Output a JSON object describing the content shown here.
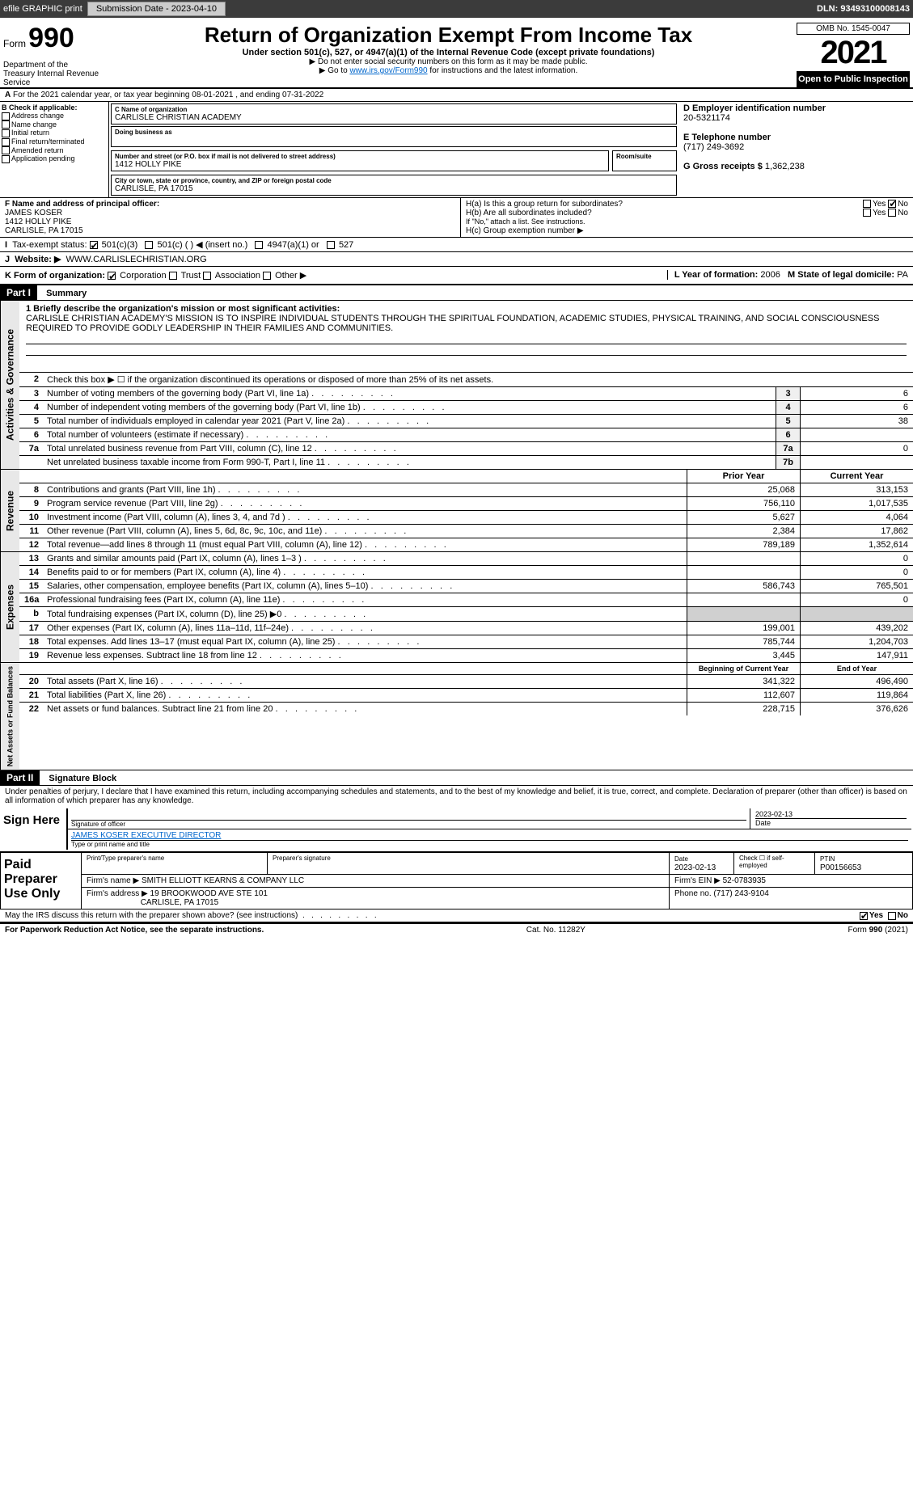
{
  "header_bar": {
    "efile": "efile GRAPHIC print",
    "submission_label": "Submission Date - 2023-04-10",
    "dln_label": "DLN: 93493100008143"
  },
  "title": {
    "form_word": "Form",
    "form_num": "990",
    "dept": "Department of the Treasury Internal Revenue Service",
    "main": "Return of Organization Exempt From Income Tax",
    "sub": "Under section 501(c), 527, or 4947(a)(1) of the Internal Revenue Code (except private foundations)",
    "note1": "▶ Do not enter social security numbers on this form as it may be made public.",
    "note2_pre": "▶ Go to ",
    "note2_link": "www.irs.gov/Form990",
    "note2_post": " for instructions and the latest information.",
    "omb": "OMB No. 1545-0047",
    "year": "2021",
    "inspect": "Open to Public Inspection"
  },
  "section_a": {
    "line": "For the 2021 calendar year, or tax year beginning 08-01-2021    , and ending 07-31-2022",
    "b_label": "B Check if applicable:",
    "b_opts": [
      "Address change",
      "Name change",
      "Initial return",
      "Final return/terminated",
      "Amended return",
      "Application pending"
    ],
    "c_name_label": "C Name of organization",
    "c_name": "CARLISLE CHRISTIAN ACADEMY",
    "dba_label": "Doing business as",
    "addr_label": "Number and street (or P.O. box if mail is not delivered to street address)",
    "room_label": "Room/suite",
    "addr": "1412 HOLLY PIKE",
    "city_label": "City or town, state or province, country, and ZIP or foreign postal code",
    "city": "CARLISLE, PA  17015",
    "d_label": "D Employer identification number",
    "d_val": "20-5321174",
    "e_label": "E Telephone number",
    "e_val": "(717) 249-3692",
    "g_label": "G Gross receipts $",
    "g_val": "1,362,238",
    "f_label": "F  Name and address of principal officer:",
    "f_name": "JAMES KOSER",
    "f_addr1": "1412 HOLLY PIKE",
    "f_addr2": "CARLISLE, PA  17015",
    "ha_label": "H(a)  Is this a group return for subordinates?",
    "hb_label": "H(b)  Are all subordinates included?",
    "hb_note": "If \"No,\" attach a list. See instructions.",
    "hc_label": "H(c)  Group exemption number ▶",
    "yes": "Yes",
    "no": "No",
    "i_label": "Tax-exempt status:",
    "i_501c3": "501(c)(3)",
    "i_501c": "501(c) (   ) ◀ (insert no.)",
    "i_4947": "4947(a)(1) or",
    "i_527": "527",
    "j_label": "Website: ▶",
    "j_val": "WWW.CARLISLECHRISTIAN.ORG",
    "k_label": "K Form of organization:",
    "k_corp": "Corporation",
    "k_trust": "Trust",
    "k_assoc": "Association",
    "k_other": "Other ▶",
    "l_label": "L Year of formation:",
    "l_val": "2006",
    "m_label": "M State of legal domicile:",
    "m_val": "PA"
  },
  "part1": {
    "hdr": "Part I",
    "title": "Summary",
    "q1_label": "1  Briefly describe the organization's mission or most significant activities:",
    "q1_text": "CARLISLE CHRISTIAN ACADEMY'S MISSION IS TO INSPIRE INDIVIDUAL STUDENTS THROUGH THE SPIRITUAL FOUNDATION, ACADEMIC STUDIES, PHYSICAL TRAINING, AND SOCIAL CONSCIOUSNESS REQUIRED TO PROVIDE GODLY LEADERSHIP IN THEIR FAMILIES AND COMMUNITIES.",
    "q2": "Check this box ▶ ☐ if the organization discontinued its operations or disposed of more than 25% of its net assets.",
    "tab_gov": "Activities & Governance",
    "tab_rev": "Revenue",
    "tab_exp": "Expenses",
    "tab_net": "Net Assets or Fund Balances",
    "prior_year": "Prior Year",
    "current_year": "Current Year",
    "begin_year": "Beginning of Current Year",
    "end_year": "End of Year",
    "rows_gov": [
      {
        "n": "3",
        "d": "Number of voting members of the governing body (Part VI, line 1a)",
        "b": "3",
        "v": "6"
      },
      {
        "n": "4",
        "d": "Number of independent voting members of the governing body (Part VI, line 1b)",
        "b": "4",
        "v": "6"
      },
      {
        "n": "5",
        "d": "Total number of individuals employed in calendar year 2021 (Part V, line 2a)",
        "b": "5",
        "v": "38"
      },
      {
        "n": "6",
        "d": "Total number of volunteers (estimate if necessary)",
        "b": "6",
        "v": ""
      },
      {
        "n": "7a",
        "d": "Total unrelated business revenue from Part VIII, column (C), line 12",
        "b": "7a",
        "v": "0"
      },
      {
        "n": "",
        "d": "Net unrelated business taxable income from Form 990-T, Part I, line 11",
        "b": "7b",
        "v": ""
      }
    ],
    "rows_rev": [
      {
        "n": "8",
        "d": "Contributions and grants (Part VIII, line 1h)",
        "p": "25,068",
        "c": "313,153"
      },
      {
        "n": "9",
        "d": "Program service revenue (Part VIII, line 2g)",
        "p": "756,110",
        "c": "1,017,535"
      },
      {
        "n": "10",
        "d": "Investment income (Part VIII, column (A), lines 3, 4, and 7d )",
        "p": "5,627",
        "c": "4,064"
      },
      {
        "n": "11",
        "d": "Other revenue (Part VIII, column (A), lines 5, 6d, 8c, 9c, 10c, and 11e)",
        "p": "2,384",
        "c": "17,862"
      },
      {
        "n": "12",
        "d": "Total revenue—add lines 8 through 11 (must equal Part VIII, column (A), line 12)",
        "p": "789,189",
        "c": "1,352,614"
      }
    ],
    "rows_exp": [
      {
        "n": "13",
        "d": "Grants and similar amounts paid (Part IX, column (A), lines 1–3 )",
        "p": "",
        "c": "0"
      },
      {
        "n": "14",
        "d": "Benefits paid to or for members (Part IX, column (A), line 4)",
        "p": "",
        "c": "0"
      },
      {
        "n": "15",
        "d": "Salaries, other compensation, employee benefits (Part IX, column (A), lines 5–10)",
        "p": "586,743",
        "c": "765,501"
      },
      {
        "n": "16a",
        "d": "Professional fundraising fees (Part IX, column (A), line 11e)",
        "p": "",
        "c": "0"
      },
      {
        "n": "b",
        "d": "Total fundraising expenses (Part IX, column (D), line 25) ▶0",
        "p": "shade",
        "c": "shade"
      },
      {
        "n": "17",
        "d": "Other expenses (Part IX, column (A), lines 11a–11d, 11f–24e)",
        "p": "199,001",
        "c": "439,202"
      },
      {
        "n": "18",
        "d": "Total expenses. Add lines 13–17 (must equal Part IX, column (A), line 25)",
        "p": "785,744",
        "c": "1,204,703"
      },
      {
        "n": "19",
        "d": "Revenue less expenses. Subtract line 18 from line 12",
        "p": "3,445",
        "c": "147,911"
      }
    ],
    "rows_net": [
      {
        "n": "20",
        "d": "Total assets (Part X, line 16)",
        "p": "341,322",
        "c": "496,490"
      },
      {
        "n": "21",
        "d": "Total liabilities (Part X, line 26)",
        "p": "112,607",
        "c": "119,864"
      },
      {
        "n": "22",
        "d": "Net assets or fund balances. Subtract line 21 from line 20",
        "p": "228,715",
        "c": "376,626"
      }
    ]
  },
  "part2": {
    "hdr": "Part II",
    "title": "Signature Block",
    "decl": "Under penalties of perjury, I declare that I have examined this return, including accompanying schedules and statements, and to the best of my knowledge and belief, it is true, correct, and complete. Declaration of preparer (other than officer) is based on all information of which preparer has any knowledge.",
    "sign_here": "Sign Here",
    "sig_officer": "Signature of officer",
    "sig_date": "Date",
    "sig_date_val": "2023-02-13",
    "sig_name": "JAMES KOSER  EXECUTIVE DIRECTOR",
    "sig_name_label": "Type or print name and title",
    "paid": "Paid Preparer Use Only",
    "prep_name_label": "Print/Type preparer's name",
    "prep_sig_label": "Preparer's signature",
    "prep_date_label": "Date",
    "prep_date": "2023-02-13",
    "prep_check": "Check ☐ if self-employed",
    "ptin_label": "PTIN",
    "ptin": "P00156653",
    "firm_name_label": "Firm's name    ▶",
    "firm_name": "SMITH ELLIOTT KEARNS & COMPANY LLC",
    "firm_ein_label": "Firm's EIN ▶",
    "firm_ein": "52-0783935",
    "firm_addr_label": "Firm's address ▶",
    "firm_addr1": "19 BROOKWOOD AVE STE 101",
    "firm_addr2": "CARLISLE, PA  17015",
    "phone_label": "Phone no.",
    "phone": "(717) 243-9104",
    "discuss": "May the IRS discuss this return with the preparer shown above? (see instructions)",
    "paperwork": "For Paperwork Reduction Act Notice, see the separate instructions.",
    "cat": "Cat. No. 11282Y",
    "form_foot": "Form 990 (2021)"
  }
}
